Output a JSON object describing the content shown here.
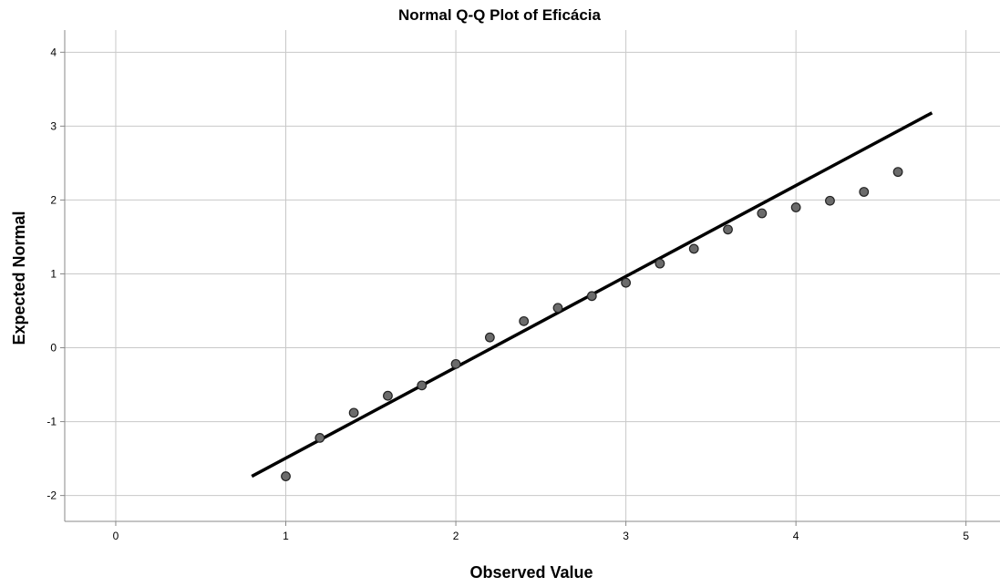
{
  "chart_data": {
    "type": "scatter",
    "title": "Normal Q-Q Plot of Eficácia",
    "xlabel": "Observed Value",
    "ylabel": "Expected Normal",
    "xlim": [
      -0.3,
      5.2
    ],
    "ylim": [
      -2.35,
      4.3
    ],
    "xticks": [
      "0",
      "1",
      "2",
      "3",
      "4",
      "5"
    ],
    "yticks": [
      "-2",
      "-1",
      "0",
      "1",
      "2",
      "3",
      "4"
    ],
    "grid": true,
    "points": [
      {
        "x": 1.0,
        "y": -1.74
      },
      {
        "x": 1.2,
        "y": -1.22
      },
      {
        "x": 1.4,
        "y": -0.88
      },
      {
        "x": 1.6,
        "y": -0.65
      },
      {
        "x": 1.8,
        "y": -0.51
      },
      {
        "x": 2.0,
        "y": -0.22
      },
      {
        "x": 2.2,
        "y": 0.14
      },
      {
        "x": 2.4,
        "y": 0.36
      },
      {
        "x": 2.6,
        "y": 0.54
      },
      {
        "x": 2.8,
        "y": 0.7
      },
      {
        "x": 3.0,
        "y": 0.88
      },
      {
        "x": 3.2,
        "y": 1.14
      },
      {
        "x": 3.4,
        "y": 1.34
      },
      {
        "x": 3.6,
        "y": 1.6
      },
      {
        "x": 3.8,
        "y": 1.82
      },
      {
        "x": 4.0,
        "y": 1.9
      },
      {
        "x": 4.2,
        "y": 1.99
      },
      {
        "x": 4.4,
        "y": 2.11
      },
      {
        "x": 4.6,
        "y": 2.38
      }
    ],
    "reference_line": {
      "x1": 0.8,
      "y1": -1.74,
      "x2": 4.8,
      "y2": 3.18
    },
    "colors": {
      "marker_fill": "#6b6b6b",
      "marker_stroke": "#222222",
      "line": "#000000",
      "grid": "#c8c8c8",
      "axis": "#888888"
    }
  }
}
